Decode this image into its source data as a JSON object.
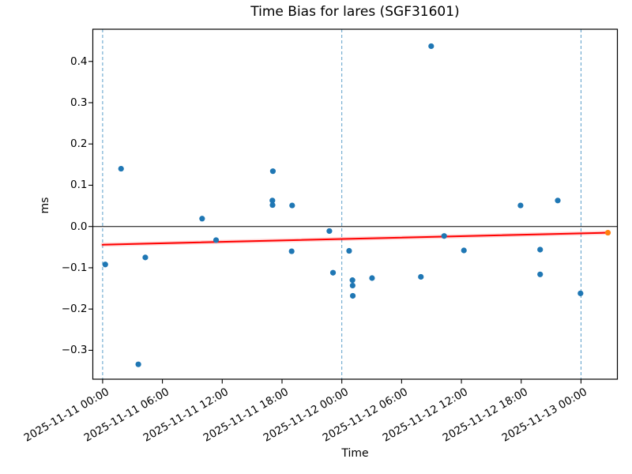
{
  "chart_data": {
    "type": "scatter",
    "title": "Time Bias for lares (SGF31601)",
    "xlabel": "Time",
    "ylabel": "ms",
    "x_min": "2025-11-10 23:01",
    "x_max": "2025-11-13 03:39",
    "ylim": [
      -0.37,
      0.478
    ],
    "grid": false,
    "legend": "none",
    "x_ticks": [
      "2025-11-11 00:00",
      "2025-11-11 06:00",
      "2025-11-11 12:00",
      "2025-11-11 18:00",
      "2025-11-12 00:00",
      "2025-11-12 06:00",
      "2025-11-12 12:00",
      "2025-11-12 18:00",
      "2025-11-13 00:00"
    ],
    "y_ticks": [
      {
        "value": 0.4,
        "label": "0.4"
      },
      {
        "value": 0.3,
        "label": "0.3"
      },
      {
        "value": 0.2,
        "label": "0.2"
      },
      {
        "value": 0.1,
        "label": "0.1"
      },
      {
        "value": 0.0,
        "label": "0.0"
      },
      {
        "value": -0.1,
        "label": "−0.1"
      },
      {
        "value": -0.2,
        "label": "−0.2"
      },
      {
        "value": -0.3,
        "label": "−0.3"
      }
    ],
    "day_boundary_lines": [
      "2025-11-11 00:00",
      "2025-11-12 00:00",
      "2025-11-13 00:00"
    ],
    "zero_line": 0.0,
    "series": [
      {
        "name": "time-bias-points",
        "marker_color": "#1f77b4",
        "points": [
          {
            "time": "2025-11-11 00:16",
            "ms": -0.092
          },
          {
            "time": "2025-11-11 01:51",
            "ms": 0.14
          },
          {
            "time": "2025-11-11 03:35",
            "ms": -0.334
          },
          {
            "time": "2025-11-11 04:17",
            "ms": -0.075
          },
          {
            "time": "2025-11-11 09:59",
            "ms": 0.019
          },
          {
            "time": "2025-11-11 11:23",
            "ms": -0.033
          },
          {
            "time": "2025-11-11 17:05",
            "ms": 0.134
          },
          {
            "time": "2025-11-11 17:02",
            "ms": 0.063
          },
          {
            "time": "2025-11-11 17:03",
            "ms": 0.052
          },
          {
            "time": "2025-11-11 18:58",
            "ms": -0.06
          },
          {
            "time": "2025-11-11 19:01",
            "ms": 0.051
          },
          {
            "time": "2025-11-11 22:45",
            "ms": -0.011
          },
          {
            "time": "2025-11-11 23:07",
            "ms": -0.112
          },
          {
            "time": "2025-11-12 00:44",
            "ms": -0.059
          },
          {
            "time": "2025-11-12 01:04",
            "ms": -0.13
          },
          {
            "time": "2025-11-12 01:05",
            "ms": -0.143
          },
          {
            "time": "2025-11-12 01:06",
            "ms": -0.168
          },
          {
            "time": "2025-11-12 03:02",
            "ms": -0.125
          },
          {
            "time": "2025-11-12 07:56",
            "ms": -0.122
          },
          {
            "time": "2025-11-12 08:58",
            "ms": 0.437
          },
          {
            "time": "2025-11-12 10:16",
            "ms": -0.023
          },
          {
            "time": "2025-11-12 12:15",
            "ms": -0.058
          },
          {
            "time": "2025-11-12 17:56",
            "ms": 0.051
          },
          {
            "time": "2025-11-12 19:54",
            "ms": -0.056
          },
          {
            "time": "2025-11-12 19:54",
            "ms": -0.116
          },
          {
            "time": "2025-11-12 21:40",
            "ms": 0.063
          },
          {
            "time": "2025-11-12 23:57",
            "ms": -0.162
          }
        ]
      },
      {
        "name": "latest-point",
        "marker_color": "#ff7f0e",
        "points": [
          {
            "time": "2025-11-13 02:42",
            "ms": -0.015
          }
        ]
      }
    ],
    "trend_line": {
      "color": "#ff0000",
      "start": {
        "time": "2025-11-11 00:00",
        "ms": -0.044
      },
      "end": {
        "time": "2025-11-13 02:42",
        "ms": -0.015
      }
    },
    "colors": {
      "marker": "#1f77b4",
      "highlight": "#ff7f0e",
      "trend": "#ff0000",
      "trend_halo": "rgba(255,60,60,0.22)",
      "day_line": "#5b9ec9",
      "zero_line": "#000000",
      "spine": "#000000"
    }
  }
}
